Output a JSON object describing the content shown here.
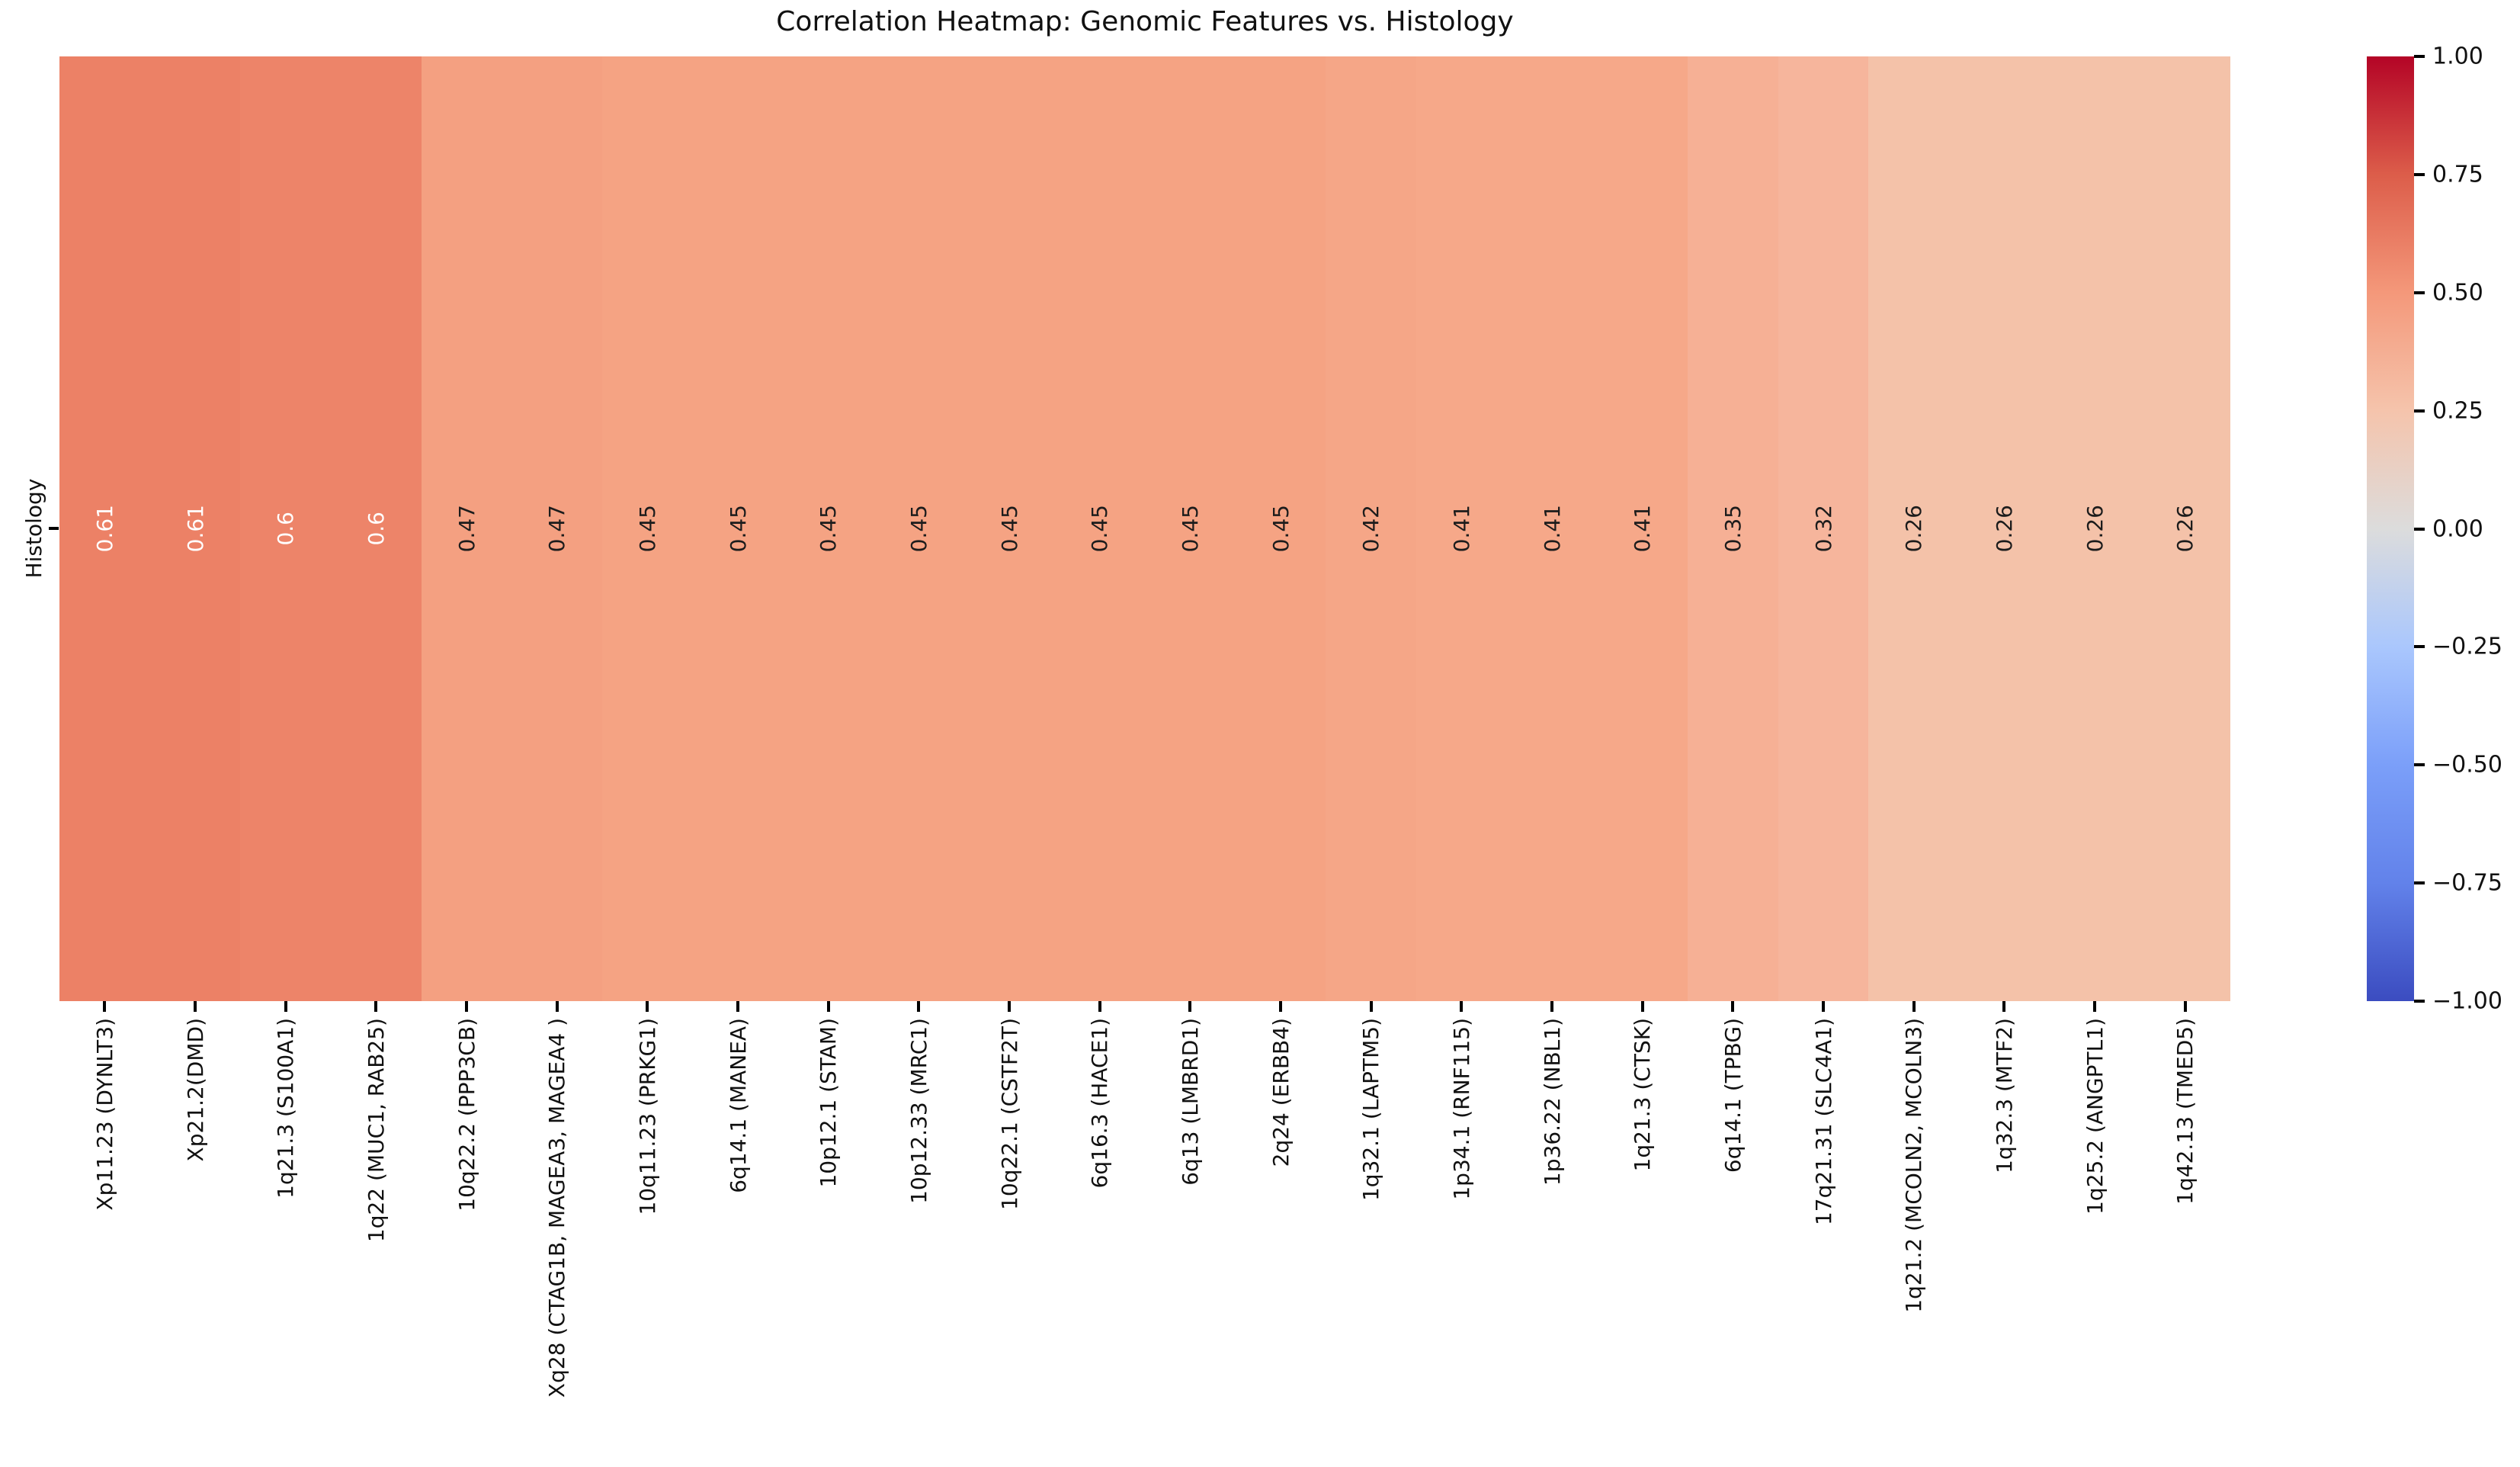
{
  "figure": {
    "title": "Correlation Heatmap: Genomic Features vs. Histology",
    "background": "#ffffff"
  },
  "y_axis": {
    "tick_label": "Histology"
  },
  "chart_data": {
    "type": "heatmap",
    "title": "Correlation Heatmap: Genomic Features vs. Histology",
    "rows": [
      "Histology"
    ],
    "colormap": "coolwarm",
    "vmin": -1,
    "vmax": 1,
    "annotated": true,
    "grid": false,
    "columns": [
      {
        "label": "Xp11.23 (DYNLT3)",
        "value": 0.61,
        "display": "0.61",
        "color": "#ec8166",
        "text_color": "#ffffff"
      },
      {
        "label": "Xp21.2(DMD)",
        "value": 0.61,
        "display": "0.61",
        "color": "#ec8166",
        "text_color": "#ffffff"
      },
      {
        "label": "1q21.3 (S100A1)",
        "value": 0.6,
        "display": "0.6",
        "color": "#ed8469",
        "text_color": "#ffffff"
      },
      {
        "label": "1q22 (MUC1, RAB25)",
        "value": 0.6,
        "display": "0.6",
        "color": "#ed8469",
        "text_color": "#ffffff"
      },
      {
        "label": "10q22.2 (PPP3CB)",
        "value": 0.47,
        "display": "0.47",
        "color": "#f4a081",
        "text_color": "#1c1c1c"
      },
      {
        "label": "Xq28 (CTAG1B, MAGEA3, MAGEA4 )",
        "value": 0.47,
        "display": "0.47",
        "color": "#f4a081",
        "text_color": "#1c1c1c"
      },
      {
        "label": "10q11.23 (PRKG1)",
        "value": 0.45,
        "display": "0.45",
        "color": "#f5a383",
        "text_color": "#1c1c1c"
      },
      {
        "label": "6q14.1 (MANEA)",
        "value": 0.45,
        "display": "0.45",
        "color": "#f5a383",
        "text_color": "#1c1c1c"
      },
      {
        "label": "10p12.1 (STAM)",
        "value": 0.45,
        "display": "0.45",
        "color": "#f5a383",
        "text_color": "#1c1c1c"
      },
      {
        "label": "10p12.33 (MRC1)",
        "value": 0.45,
        "display": "0.45",
        "color": "#f5a383",
        "text_color": "#1c1c1c"
      },
      {
        "label": "10q22.1 (CSTF2T)",
        "value": 0.45,
        "display": "0.45",
        "color": "#f5a383",
        "text_color": "#1c1c1c"
      },
      {
        "label": "6q16.3 (HACE1)",
        "value": 0.45,
        "display": "0.45",
        "color": "#f5a383",
        "text_color": "#1c1c1c"
      },
      {
        "label": "6q13 (LMBRD1)",
        "value": 0.45,
        "display": "0.45",
        "color": "#f5a383",
        "text_color": "#1c1c1c"
      },
      {
        "label": "2q24 (ERBB4)",
        "value": 0.45,
        "display": "0.45",
        "color": "#f5a383",
        "text_color": "#1c1c1c"
      },
      {
        "label": "1q32.1 (LAPTM5)",
        "value": 0.42,
        "display": "0.42",
        "color": "#f5a687",
        "text_color": "#1c1c1c"
      },
      {
        "label": "1p34.1 (RNF115)",
        "value": 0.41,
        "display": "0.41",
        "color": "#f6a889",
        "text_color": "#1c1c1c"
      },
      {
        "label": "1p36.22 (NBL1)",
        "value": 0.41,
        "display": "0.41",
        "color": "#f6a889",
        "text_color": "#1c1c1c"
      },
      {
        "label": "1q21.3 (CTSK)",
        "value": 0.41,
        "display": "0.41",
        "color": "#f6a889",
        "text_color": "#1c1c1c"
      },
      {
        "label": "6q14.1 (TPBG)",
        "value": 0.35,
        "display": "0.35",
        "color": "#f6b095",
        "text_color": "#1c1c1c"
      },
      {
        "label": "17q21.31 (SLC4A1)",
        "value": 0.32,
        "display": "0.32",
        "color": "#f6b59c",
        "text_color": "#1c1c1c"
      },
      {
        "label": "1q21.2 (MCOLN2, MCOLN3)",
        "value": 0.26,
        "display": "0.26",
        "color": "#f4c2a9",
        "text_color": "#1c1c1c"
      },
      {
        "label": "1q32.3 (MTF2)",
        "value": 0.26,
        "display": "0.26",
        "color": "#f4c2a9",
        "text_color": "#1c1c1c"
      },
      {
        "label": "1q25.2 (ANGPTL1)",
        "value": 0.26,
        "display": "0.26",
        "color": "#f4c2a9",
        "text_color": "#1c1c1c"
      },
      {
        "label": "1q42.13 (TMED5)",
        "value": 0.26,
        "display": "0.26",
        "color": "#f4c2a9",
        "text_color": "#1c1c1c"
      }
    ],
    "colorbar": {
      "tick_labels": [
        "1.00",
        "0.75",
        "0.50",
        "0.25",
        "0.00",
        "−0.25",
        "−0.50",
        "−0.75",
        "−1.00"
      ],
      "gradient_stops": [
        {
          "pos": 0,
          "color": "#3b4cc0"
        },
        {
          "pos": 12.5,
          "color": "#6282ea"
        },
        {
          "pos": 25,
          "color": "#7b9ff9"
        },
        {
          "pos": 37.5,
          "color": "#aac7fd"
        },
        {
          "pos": 50,
          "color": "#dcdcdc"
        },
        {
          "pos": 62.5,
          "color": "#f5c4ac"
        },
        {
          "pos": 75,
          "color": "#f4987a"
        },
        {
          "pos": 87.5,
          "color": "#dc5d4a"
        },
        {
          "pos": 100,
          "color": "#b40426"
        }
      ]
    }
  }
}
